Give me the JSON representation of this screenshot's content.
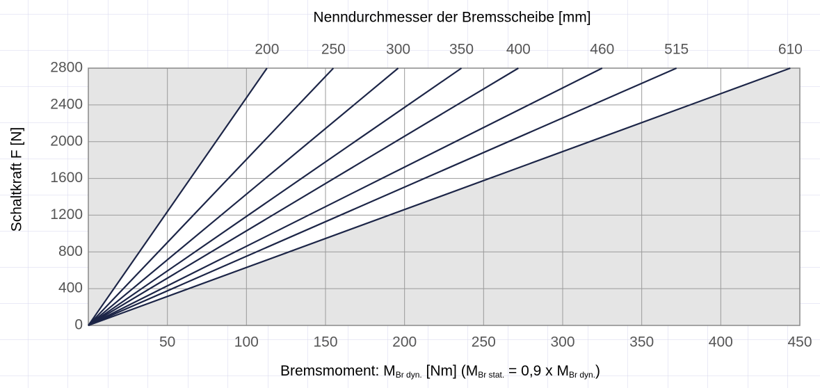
{
  "chart_data": {
    "type": "line",
    "title": "Nenndurchmesser der Bremsscheibe [mm]",
    "y_label": "Schaltkraft F [N]",
    "x_label": [
      "Bremsmoment: M",
      "Br dyn.",
      " [Nm] (M",
      "Br stat.",
      " = 0,9 x M",
      "Br dyn.",
      ")"
    ],
    "xlim": [
      0,
      450
    ],
    "ylim": [
      0,
      2800
    ],
    "xticks": [
      50,
      100,
      150,
      200,
      250,
      300,
      350,
      400,
      450
    ],
    "yticks": [
      0,
      400,
      800,
      1200,
      1600,
      2000,
      2400,
      2800
    ],
    "grid": true,
    "series": [
      {
        "name": "200",
        "color": "#1c2547",
        "x": [
          0,
          113
        ],
        "values": [
          0,
          2800
        ]
      },
      {
        "name": "250",
        "color": "#1c2547",
        "x": [
          0,
          155
        ],
        "values": [
          0,
          2800
        ]
      },
      {
        "name": "300",
        "color": "#1c2547",
        "x": [
          0,
          196
        ],
        "values": [
          0,
          2800
        ]
      },
      {
        "name": "350",
        "color": "#1c2547",
        "x": [
          0,
          236
        ],
        "values": [
          0,
          2800
        ]
      },
      {
        "name": "400",
        "color": "#1c2547",
        "x": [
          0,
          272
        ],
        "values": [
          0,
          2800
        ]
      },
      {
        "name": "460",
        "color": "#1c2547",
        "x": [
          0,
          325
        ],
        "values": [
          0,
          2800
        ]
      },
      {
        "name": "515",
        "color": "#1c2547",
        "x": [
          0,
          372
        ],
        "values": [
          0,
          2800
        ]
      },
      {
        "name": "610",
        "color": "#1c2547",
        "x": [
          0,
          444
        ],
        "values": [
          0,
          2800
        ]
      }
    ]
  }
}
